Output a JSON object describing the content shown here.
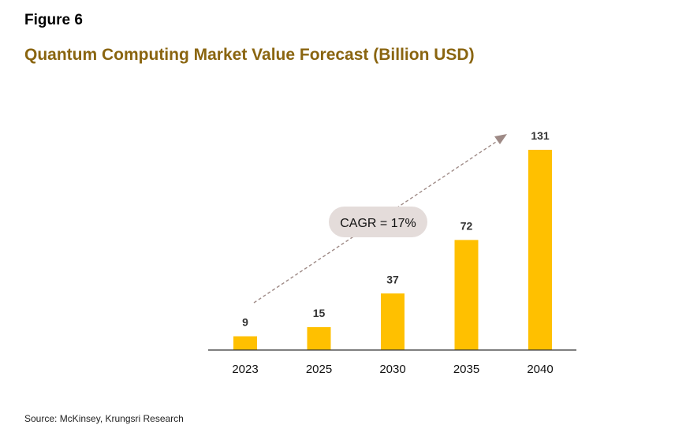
{
  "figure_label": "Figure 6",
  "title": "Quantum Computing Market Value Forecast (Billion USD)",
  "source": "Source: McKinsey, Krungsri Research",
  "colors": {
    "bar": "#FFC000",
    "title": "#8A6510",
    "arrow": "#9E8A86",
    "annotation_bg": "#E4DCDA"
  },
  "chart_data": {
    "type": "bar",
    "categories": [
      "2023",
      "2025",
      "2030",
      "2035",
      "2040"
    ],
    "values": [
      9,
      15,
      37,
      72,
      131
    ],
    "title": "Quantum Computing Market Value Forecast (Billion USD)",
    "xlabel": "",
    "ylabel": "",
    "ylim": [
      0,
      140
    ],
    "grid": false,
    "legend": "none",
    "annotation": "CAGR = 17%"
  }
}
